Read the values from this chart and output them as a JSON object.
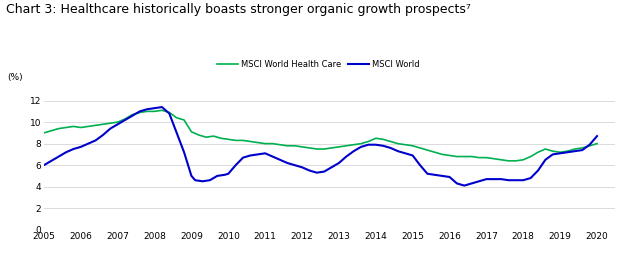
{
  "title": "Chart 3: Healthcare historically boasts stronger organic growth prospects⁷",
  "ylabel": "(%)",
  "xlim_start": 2005.0,
  "xlim_end": 2020.5,
  "ylim": [
    0,
    13.5
  ],
  "yticks": [
    0,
    2,
    4,
    6,
    8,
    10,
    12
  ],
  "xtick_labels": [
    "2005",
    "2006",
    "2007",
    "2008",
    "2009",
    "2010",
    "2011",
    "2012",
    "2013",
    "2014",
    "2015",
    "2016",
    "2017",
    "2018",
    "2019",
    "2020"
  ],
  "healthcare_color": "#00b050",
  "world_color": "#0000cc",
  "legend_healthcare": "MSCI World Health Care",
  "legend_world": "MSCI World",
  "background_color": "#ffffff",
  "title_fontsize": 9,
  "tick_fontsize": 6.5,
  "healthcare_data": [
    [
      2005.0,
      9.0
    ],
    [
      2005.2,
      9.2
    ],
    [
      2005.4,
      9.4
    ],
    [
      2005.6,
      9.5
    ],
    [
      2005.8,
      9.6
    ],
    [
      2006.0,
      9.5
    ],
    [
      2006.2,
      9.6
    ],
    [
      2006.4,
      9.7
    ],
    [
      2006.6,
      9.8
    ],
    [
      2006.8,
      9.9
    ],
    [
      2007.0,
      10.0
    ],
    [
      2007.2,
      10.3
    ],
    [
      2007.4,
      10.7
    ],
    [
      2007.6,
      10.9
    ],
    [
      2007.8,
      11.0
    ],
    [
      2008.0,
      11.0
    ],
    [
      2008.2,
      11.1
    ],
    [
      2008.4,
      10.9
    ],
    [
      2008.6,
      10.4
    ],
    [
      2008.8,
      10.2
    ],
    [
      2009.0,
      9.1
    ],
    [
      2009.2,
      8.8
    ],
    [
      2009.4,
      8.6
    ],
    [
      2009.6,
      8.7
    ],
    [
      2009.8,
      8.5
    ],
    [
      2010.0,
      8.4
    ],
    [
      2010.2,
      8.3
    ],
    [
      2010.4,
      8.3
    ],
    [
      2010.6,
      8.2
    ],
    [
      2010.8,
      8.1
    ],
    [
      2011.0,
      8.0
    ],
    [
      2011.2,
      8.0
    ],
    [
      2011.4,
      7.9
    ],
    [
      2011.6,
      7.8
    ],
    [
      2011.8,
      7.8
    ],
    [
      2012.0,
      7.7
    ],
    [
      2012.2,
      7.6
    ],
    [
      2012.4,
      7.5
    ],
    [
      2012.6,
      7.5
    ],
    [
      2012.8,
      7.6
    ],
    [
      2013.0,
      7.7
    ],
    [
      2013.2,
      7.8
    ],
    [
      2013.4,
      7.9
    ],
    [
      2013.6,
      8.0
    ],
    [
      2013.8,
      8.2
    ],
    [
      2014.0,
      8.5
    ],
    [
      2014.2,
      8.4
    ],
    [
      2014.4,
      8.2
    ],
    [
      2014.6,
      8.0
    ],
    [
      2014.8,
      7.9
    ],
    [
      2015.0,
      7.8
    ],
    [
      2015.2,
      7.6
    ],
    [
      2015.4,
      7.4
    ],
    [
      2015.6,
      7.2
    ],
    [
      2015.8,
      7.0
    ],
    [
      2016.0,
      6.9
    ],
    [
      2016.2,
      6.8
    ],
    [
      2016.4,
      6.8
    ],
    [
      2016.6,
      6.8
    ],
    [
      2016.8,
      6.7
    ],
    [
      2017.0,
      6.7
    ],
    [
      2017.2,
      6.6
    ],
    [
      2017.4,
      6.5
    ],
    [
      2017.6,
      6.4
    ],
    [
      2017.8,
      6.4
    ],
    [
      2018.0,
      6.5
    ],
    [
      2018.2,
      6.8
    ],
    [
      2018.4,
      7.2
    ],
    [
      2018.6,
      7.5
    ],
    [
      2018.8,
      7.3
    ],
    [
      2019.0,
      7.2
    ],
    [
      2019.2,
      7.3
    ],
    [
      2019.4,
      7.5
    ],
    [
      2019.6,
      7.6
    ],
    [
      2019.8,
      7.8
    ],
    [
      2020.0,
      8.0
    ]
  ],
  "world_data": [
    [
      2005.0,
      6.0
    ],
    [
      2005.2,
      6.4
    ],
    [
      2005.4,
      6.8
    ],
    [
      2005.6,
      7.2
    ],
    [
      2005.8,
      7.5
    ],
    [
      2006.0,
      7.7
    ],
    [
      2006.2,
      8.0
    ],
    [
      2006.4,
      8.3
    ],
    [
      2006.6,
      8.8
    ],
    [
      2006.8,
      9.4
    ],
    [
      2007.0,
      9.8
    ],
    [
      2007.2,
      10.2
    ],
    [
      2007.4,
      10.6
    ],
    [
      2007.6,
      11.0
    ],
    [
      2007.8,
      11.2
    ],
    [
      2008.0,
      11.3
    ],
    [
      2008.2,
      11.4
    ],
    [
      2008.4,
      10.8
    ],
    [
      2008.6,
      9.0
    ],
    [
      2008.8,
      7.2
    ],
    [
      2009.0,
      5.0
    ],
    [
      2009.1,
      4.6
    ],
    [
      2009.3,
      4.5
    ],
    [
      2009.5,
      4.6
    ],
    [
      2009.7,
      5.0
    ],
    [
      2009.9,
      5.1
    ],
    [
      2010.0,
      5.2
    ],
    [
      2010.2,
      6.0
    ],
    [
      2010.4,
      6.7
    ],
    [
      2010.6,
      6.9
    ],
    [
      2010.8,
      7.0
    ],
    [
      2011.0,
      7.1
    ],
    [
      2011.2,
      6.8
    ],
    [
      2011.4,
      6.5
    ],
    [
      2011.6,
      6.2
    ],
    [
      2011.8,
      6.0
    ],
    [
      2012.0,
      5.8
    ],
    [
      2012.2,
      5.5
    ],
    [
      2012.4,
      5.3
    ],
    [
      2012.6,
      5.4
    ],
    [
      2012.8,
      5.8
    ],
    [
      2013.0,
      6.2
    ],
    [
      2013.2,
      6.8
    ],
    [
      2013.4,
      7.3
    ],
    [
      2013.6,
      7.7
    ],
    [
      2013.8,
      7.9
    ],
    [
      2014.0,
      7.9
    ],
    [
      2014.2,
      7.8
    ],
    [
      2014.4,
      7.6
    ],
    [
      2014.6,
      7.3
    ],
    [
      2014.8,
      7.1
    ],
    [
      2015.0,
      6.9
    ],
    [
      2015.2,
      6.0
    ],
    [
      2015.4,
      5.2
    ],
    [
      2015.6,
      5.1
    ],
    [
      2015.8,
      5.0
    ],
    [
      2016.0,
      4.9
    ],
    [
      2016.2,
      4.3
    ],
    [
      2016.4,
      4.1
    ],
    [
      2016.6,
      4.3
    ],
    [
      2016.8,
      4.5
    ],
    [
      2017.0,
      4.7
    ],
    [
      2017.2,
      4.7
    ],
    [
      2017.4,
      4.7
    ],
    [
      2017.6,
      4.6
    ],
    [
      2017.8,
      4.6
    ],
    [
      2018.0,
      4.6
    ],
    [
      2018.2,
      4.8
    ],
    [
      2018.4,
      5.5
    ],
    [
      2018.6,
      6.5
    ],
    [
      2018.8,
      7.0
    ],
    [
      2019.0,
      7.1
    ],
    [
      2019.2,
      7.2
    ],
    [
      2019.4,
      7.3
    ],
    [
      2019.6,
      7.4
    ],
    [
      2019.8,
      7.9
    ],
    [
      2020.0,
      8.7
    ]
  ]
}
